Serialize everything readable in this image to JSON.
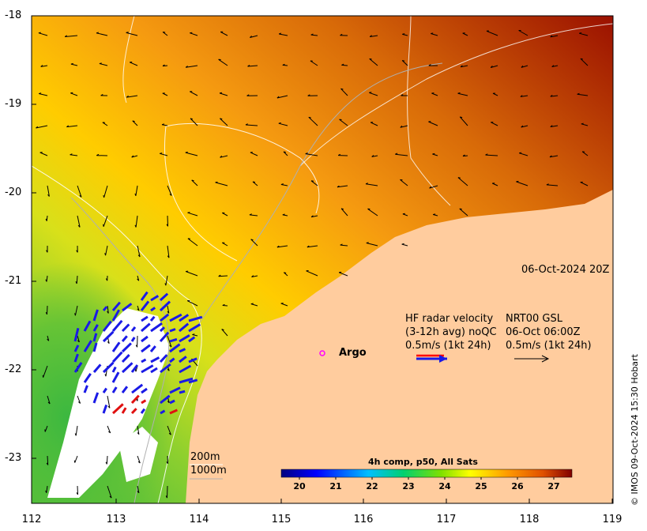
{
  "map": {
    "date_label": "06-Oct-2024 20Z",
    "lon_ticks": [
      "112",
      "113",
      "114",
      "115",
      "116",
      "117",
      "118",
      "119"
    ],
    "lat_ticks": [
      "-18",
      "-19",
      "-20",
      "-21",
      "-22",
      "-23"
    ],
    "lon_range": [
      112,
      119
    ],
    "lat_range": [
      -23.5,
      -18
    ],
    "colors": {
      "land": "#ffcc9e",
      "ocean_warm": "#c05a00",
      "ocean_cool": "#2fb040",
      "radar_arrow": "#1a1ae6",
      "argo_marker": "#ff00ff"
    }
  },
  "legend": {
    "hf_radar_line1": "HF radar velocity",
    "hf_radar_line2": "(3-12h avg) noQC",
    "hf_radar_line3": "0.5m/s (1kt 24h)",
    "nrt_line1": "NRT00 GSL",
    "nrt_line2": "06-Oct 06:00Z",
    "nrt_line3": "0.5m/s (1kt 24h)",
    "argo_label": "Argo",
    "depth_200": "200m",
    "depth_1000": "1000m"
  },
  "colorbar": {
    "title": "4h comp, p50, All Sats",
    "ticks": [
      "20",
      "21",
      "22",
      "23",
      "24",
      "25",
      "26",
      "27"
    ],
    "range": [
      19.5,
      27.5
    ]
  },
  "copyright": "© IMOS 09-Oct-2024 15:30 Hobart"
}
